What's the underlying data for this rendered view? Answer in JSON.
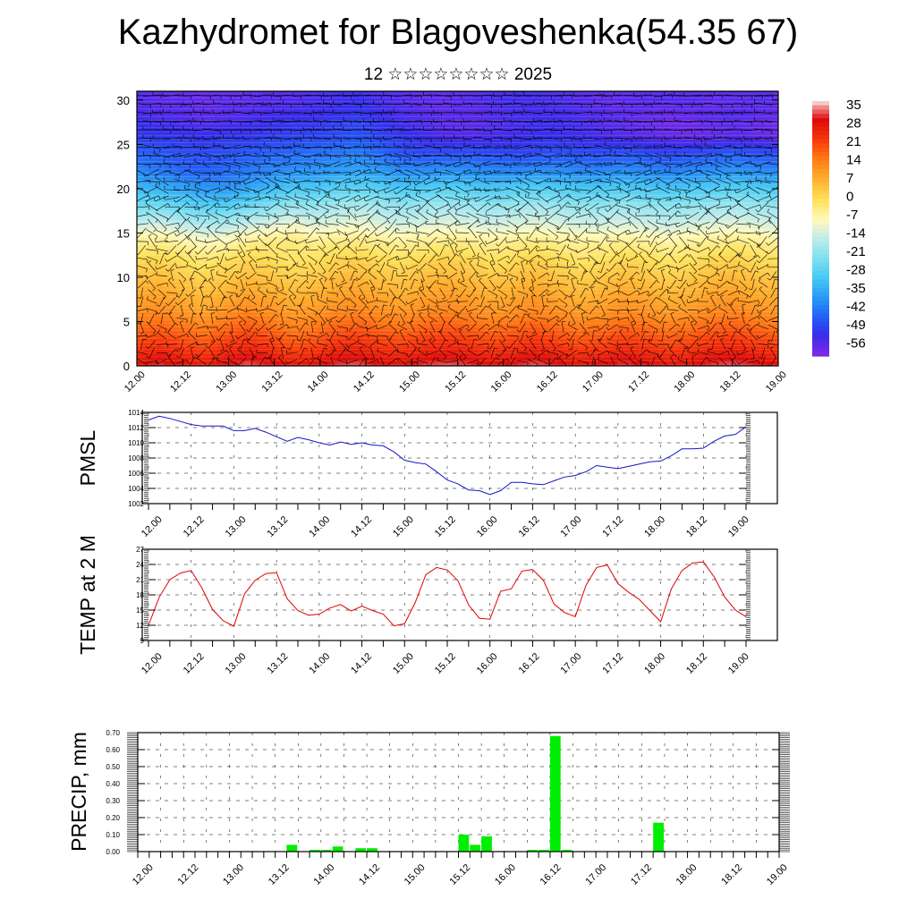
{
  "title": "Kazhydromet for Blagoveshenka(54.35 67)",
  "subtitle": "12 ☆☆☆☆☆☆☆☆ 2025",
  "x_ticks": [
    "12.00",
    "12.12",
    "13.00",
    "13.12",
    "14.00",
    "14.12",
    "15.00",
    "15.12",
    "16.00",
    "16.12",
    "17.00",
    "17.12",
    "18.00",
    "18.12",
    "19.00"
  ],
  "colors": {
    "pmsl_line": "#1414c8",
    "temp_line": "#e00000",
    "precip_bar": "#00ee00"
  },
  "chart_data": [
    {
      "type": "heatmap",
      "name": "temperature-wind-cross-section",
      "xlabel": "",
      "ylabel": "",
      "y_ticks": [
        0,
        5,
        10,
        15,
        20,
        25,
        30
      ],
      "ylim": [
        0,
        31
      ],
      "colorbar_labels": [
        "35",
        "28",
        "21",
        "14",
        "7",
        "0",
        "-7",
        "-14",
        "-21",
        "-28",
        "-35",
        "-42",
        "-49",
        "-56"
      ],
      "colorbar_range": [
        -60,
        38
      ],
      "levels": [
        0,
        2,
        4,
        6,
        8,
        10,
        12,
        14,
        16,
        18,
        20,
        22,
        24,
        26,
        28,
        30
      ],
      "field": [
        [
          30,
          33,
          30,
          28,
          31,
          34,
          32,
          28,
          30,
          33,
          34,
          31,
          30,
          33,
          34,
          33,
          30,
          32,
          34,
          32,
          29,
          31,
          33,
          31,
          29,
          30,
          33,
          34,
          32,
          30
        ],
        [
          24,
          26,
          24,
          22,
          25,
          27,
          25,
          22,
          23,
          26,
          27,
          25,
          24,
          26,
          27,
          26,
          24,
          25,
          27,
          25,
          23,
          24,
          26,
          25,
          23,
          24,
          26,
          27,
          25,
          24
        ],
        [
          18,
          20,
          18,
          16,
          19,
          21,
          19,
          16,
          17,
          20,
          21,
          19,
          18,
          20,
          21,
          20,
          18,
          19,
          21,
          19,
          17,
          18,
          20,
          19,
          17,
          18,
          20,
          21,
          19,
          18
        ],
        [
          13,
          14,
          12,
          10,
          13,
          15,
          13,
          11,
          12,
          14,
          15,
          13,
          12,
          14,
          15,
          14,
          12,
          13,
          15,
          13,
          11,
          12,
          14,
          13,
          11,
          12,
          14,
          15,
          13,
          12
        ],
        [
          9,
          10,
          8,
          6,
          8,
          10,
          9,
          7,
          8,
          10,
          11,
          9,
          8,
          10,
          11,
          10,
          8,
          9,
          11,
          9,
          7,
          8,
          10,
          9,
          7,
          8,
          10,
          11,
          9,
          8
        ],
        [
          5,
          6,
          4,
          2,
          4,
          6,
          5,
          3,
          4,
          6,
          7,
          5,
          4,
          6,
          7,
          6,
          4,
          5,
          7,
          5,
          3,
          4,
          6,
          5,
          3,
          4,
          6,
          7,
          5,
          4
        ],
        [
          1,
          2,
          0,
          -2,
          0,
          2,
          1,
          -1,
          0,
          2,
          3,
          1,
          0,
          2,
          3,
          2,
          0,
          1,
          3,
          1,
          -1,
          0,
          2,
          1,
          -1,
          0,
          2,
          3,
          1,
          0
        ],
        [
          -4,
          -4,
          -6,
          -8,
          -7,
          -4,
          -3,
          -2,
          -4,
          -3,
          -3,
          -4,
          -5,
          -4,
          -3,
          -4,
          -5,
          -4,
          -3,
          -4,
          -5,
          -5,
          -4,
          -5,
          -6,
          -5,
          -4,
          -3,
          -4,
          -5
        ],
        [
          -14,
          -13,
          -15,
          -17,
          -17,
          -14,
          -12,
          -10,
          -12,
          -11,
          -10,
          -12,
          -13,
          -12,
          -11,
          -12,
          -13,
          -12,
          -11,
          -12,
          -13,
          -13,
          -12,
          -13,
          -14,
          -13,
          -12,
          -11,
          -12,
          -13
        ],
        [
          -24,
          -24,
          -26,
          -28,
          -28,
          -25,
          -22,
          -19,
          -20,
          -18,
          -17,
          -18,
          -20,
          -19,
          -18,
          -19,
          -20,
          -19,
          -18,
          -19,
          -20,
          -20,
          -19,
          -20,
          -21,
          -20,
          -19,
          -18,
          -19,
          -20
        ],
        [
          -33,
          -34,
          -36,
          -38,
          -38,
          -36,
          -33,
          -30,
          -30,
          -28,
          -27,
          -28,
          -30,
          -29,
          -28,
          -29,
          -30,
          -29,
          -28,
          -29,
          -30,
          -30,
          -29,
          -30,
          -31,
          -30,
          -29,
          -28,
          -29,
          -30
        ],
        [
          -40,
          -42,
          -44,
          -45,
          -44,
          -42,
          -40,
          -39,
          -38,
          -37,
          -36,
          -37,
          -40,
          -39,
          -38,
          -39,
          -40,
          -40,
          -39,
          -39,
          -40,
          -40,
          -39,
          -40,
          -41,
          -40,
          -39,
          -38,
          -39,
          -40
        ],
        [
          -45,
          -46,
          -47,
          -48,
          -47,
          -46,
          -45,
          -44,
          -43,
          -42,
          -41,
          -44,
          -47,
          -48,
          -48,
          -47,
          -48,
          -49,
          -48,
          -47,
          -48,
          -48,
          -47,
          -48,
          -49,
          -48,
          -47,
          -46,
          -47,
          -48
        ],
        [
          -50,
          -51,
          -51,
          -52,
          -51,
          -51,
          -50,
          -49,
          -49,
          -48,
          -47,
          -49,
          -51,
          -53,
          -55,
          -55,
          -54,
          -53,
          -52,
          -52,
          -53,
          -54,
          -55,
          -56,
          -57,
          -58,
          -57,
          -56,
          -57,
          -58
        ],
        [
          -53,
          -54,
          -55,
          -56,
          -55,
          -54,
          -53,
          -52,
          -52,
          -51,
          -50,
          -52,
          -54,
          -55,
          -56,
          -56,
          -55,
          -54,
          -53,
          -53,
          -54,
          -55,
          -56,
          -57,
          -58,
          -57,
          -56,
          -55,
          -56,
          -57
        ],
        [
          -55,
          -56,
          -56,
          -57,
          -56,
          -56,
          -55,
          -55,
          -54,
          -53,
          -52,
          -54,
          -55,
          -56,
          -56,
          -55,
          -54,
          -53,
          -53,
          -54,
          -55,
          -56,
          -56,
          -55,
          -55,
          -55,
          -56,
          -56,
          -55,
          -56
        ]
      ]
    },
    {
      "type": "line",
      "name": "pmsl",
      "ylabel": "PMSL",
      "ylim": [
        1002,
        1014
      ],
      "y_ticks": [
        1002,
        1004,
        1006,
        1008,
        1010,
        1012,
        1014
      ],
      "x": [
        0,
        3,
        6,
        9,
        12,
        15,
        18,
        21,
        24,
        27,
        30,
        33,
        36,
        39,
        42,
        45,
        48,
        51,
        54,
        57,
        60,
        63,
        66,
        69,
        72,
        75,
        78,
        81,
        84,
        87,
        90,
        93,
        96,
        99,
        102,
        105,
        108,
        111,
        114,
        117,
        120,
        123,
        126,
        129,
        132,
        135,
        138,
        141,
        144,
        147,
        150,
        153,
        156,
        159,
        162,
        165,
        168
      ],
      "values": [
        1013,
        1013.5,
        1013.2,
        1012.8,
        1012.4,
        1012.2,
        1012.2,
        1012.2,
        1011.6,
        1011.6,
        1011.9,
        1011.4,
        1010.8,
        1010.2,
        1010.7,
        1010.4,
        1010,
        1009.7,
        1010.1,
        1009.8,
        1010,
        1009.7,
        1009.6,
        1008.8,
        1007.7,
        1007.4,
        1007.2,
        1006.2,
        1005.1,
        1004.6,
        1003.8,
        1003.7,
        1003.2,
        1003.7,
        1004.8,
        1004.8,
        1004.6,
        1004.5,
        1005,
        1005.5,
        1005.7,
        1006.2,
        1007,
        1006.8,
        1006.6,
        1006.9,
        1007.2,
        1007.5,
        1007.6,
        1008.3,
        1009.2,
        1009.2,
        1009.3,
        1010.2,
        1010.9,
        1011.1,
        1012.1
      ]
    },
    {
      "type": "line",
      "name": "temp-2m",
      "ylabel": "TEMP at 2 M",
      "ylim": [
        9,
        27
      ],
      "y_ticks": [
        9,
        12,
        15,
        18,
        21,
        24,
        27
      ],
      "x": [
        0,
        3,
        6,
        9,
        12,
        15,
        18,
        21,
        24,
        27,
        30,
        33,
        36,
        39,
        42,
        45,
        48,
        51,
        54,
        57,
        60,
        63,
        66,
        69,
        72,
        75,
        78,
        81,
        84,
        87,
        90,
        93,
        96,
        99,
        102,
        105,
        108,
        111,
        114,
        117,
        120,
        123,
        126,
        129,
        132,
        135,
        138,
        141,
        144,
        147,
        150,
        153,
        156,
        159,
        162,
        165,
        168
      ],
      "values": [
        12,
        17.5,
        21,
        22.3,
        22.8,
        19.4,
        15.1,
        12.9,
        11.8,
        18.2,
        20.9,
        22.2,
        22.4,
        17.2,
        14.9,
        14,
        14.2,
        15.4,
        16.1,
        14.8,
        15.8,
        14.9,
        14.2,
        11.9,
        12.3,
        16.5,
        22,
        23.4,
        22.9,
        20.8,
        16,
        13.4,
        13.2,
        18.7,
        19.2,
        22.7,
        23,
        20.9,
        16.2,
        14.5,
        13.7,
        19.9,
        23.4,
        23.9,
        20.2,
        18.5,
        17.1,
        14.9,
        12.7,
        19.2,
        22.8,
        24.3,
        24.5,
        21.6,
        17.6,
        15,
        13.7
      ]
    },
    {
      "type": "bar",
      "name": "precip",
      "ylabel": "PRECIP, mm",
      "ylim": [
        0,
        0.7
      ],
      "y_ticks": [
        "0.00",
        "0.10",
        "0.20",
        "0.30",
        "0.40",
        "0.50",
        "0.60",
        "0.70"
      ],
      "x": [
        39,
        45,
        48,
        51,
        57,
        60,
        84,
        87,
        90,
        102,
        105,
        108,
        111,
        135
      ],
      "values": [
        0.04,
        0.01,
        0.01,
        0.03,
        0.02,
        0.02,
        0.1,
        0.04,
        0.09,
        0.01,
        0.01,
        0.68,
        0.01,
        0.17
      ]
    }
  ]
}
